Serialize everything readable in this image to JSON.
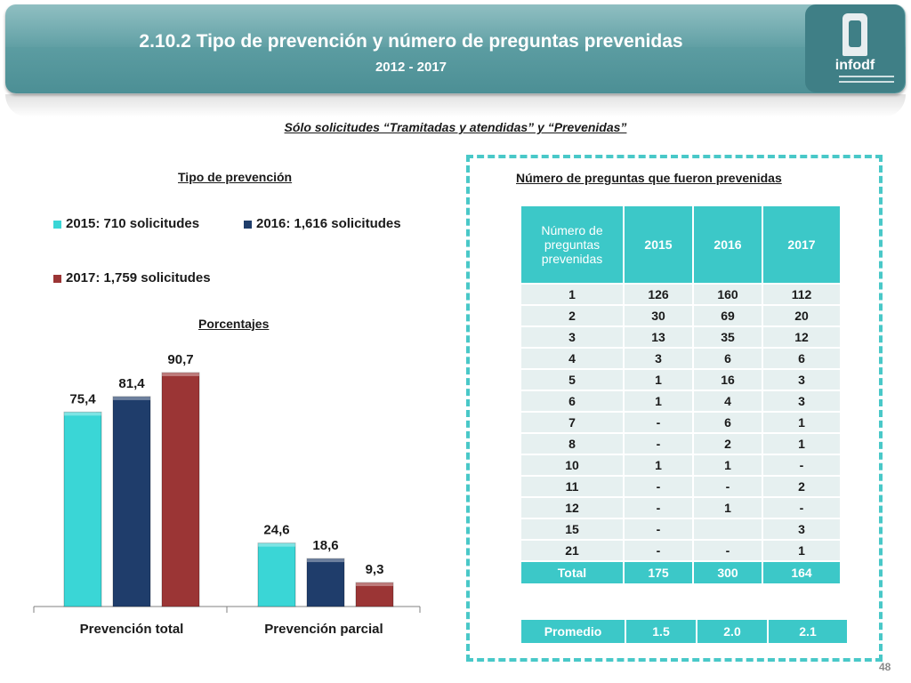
{
  "header": {
    "title": "2.10.2 Tipo de prevención y número de preguntas prevenidas",
    "subtitle": "2012 - 2017",
    "logo_text": "infodf"
  },
  "note": "Sólo solicitudes “Tramitadas y atendidas” y “Prevenidas”",
  "chart_data": {
    "type": "bar",
    "title": "Tipo de prevención",
    "subtitle": "Porcentajes",
    "categories": [
      "Prevención total",
      "Prevención parcial"
    ],
    "series": [
      {
        "name": "2015: 710 solicitudes",
        "color": "#3ad6d6",
        "values": [
          75.4,
          24.6
        ],
        "labels": [
          "75,4",
          "24,6"
        ]
      },
      {
        "name": "2016: 1,616 solicitudes",
        "color": "#1f3d6b",
        "values": [
          81.4,
          18.6
        ],
        "labels": [
          "81,4",
          "18,6"
        ]
      },
      {
        "name": "2017: 1,759 solicitudes",
        "color": "#9b3535",
        "values": [
          90.7,
          9.3
        ],
        "labels": [
          "90,7",
          "9,3"
        ]
      }
    ],
    "ylim": [
      0,
      100
    ],
    "legend_position": "top"
  },
  "table": {
    "title": "Número de preguntas que fueron prevenidas",
    "headers": [
      "Número de preguntas prevenidas",
      "2015",
      "2016",
      "2017"
    ],
    "rows": [
      [
        "1",
        "126",
        "160",
        "112"
      ],
      [
        "2",
        "30",
        "69",
        "20"
      ],
      [
        "3",
        "13",
        "35",
        "12"
      ],
      [
        "4",
        "3",
        "6",
        "6"
      ],
      [
        "5",
        "1",
        "16",
        "3"
      ],
      [
        "6",
        "1",
        "4",
        "3"
      ],
      [
        "7",
        "-",
        "6",
        "1"
      ],
      [
        "8",
        "-",
        "2",
        "1"
      ],
      [
        "10",
        "1",
        "1",
        "-"
      ],
      [
        "11",
        "-",
        "-",
        "2"
      ],
      [
        "12",
        "-",
        "1",
        "-"
      ],
      [
        "15",
        "-",
        "",
        "3"
      ],
      [
        "21",
        "-",
        "-",
        "1"
      ]
    ],
    "total": [
      "Total",
      "175",
      "300",
      "164"
    ],
    "promedio": [
      "Promedio",
      "1.5",
      "2.0",
      "2.1"
    ]
  },
  "page_number": "48"
}
